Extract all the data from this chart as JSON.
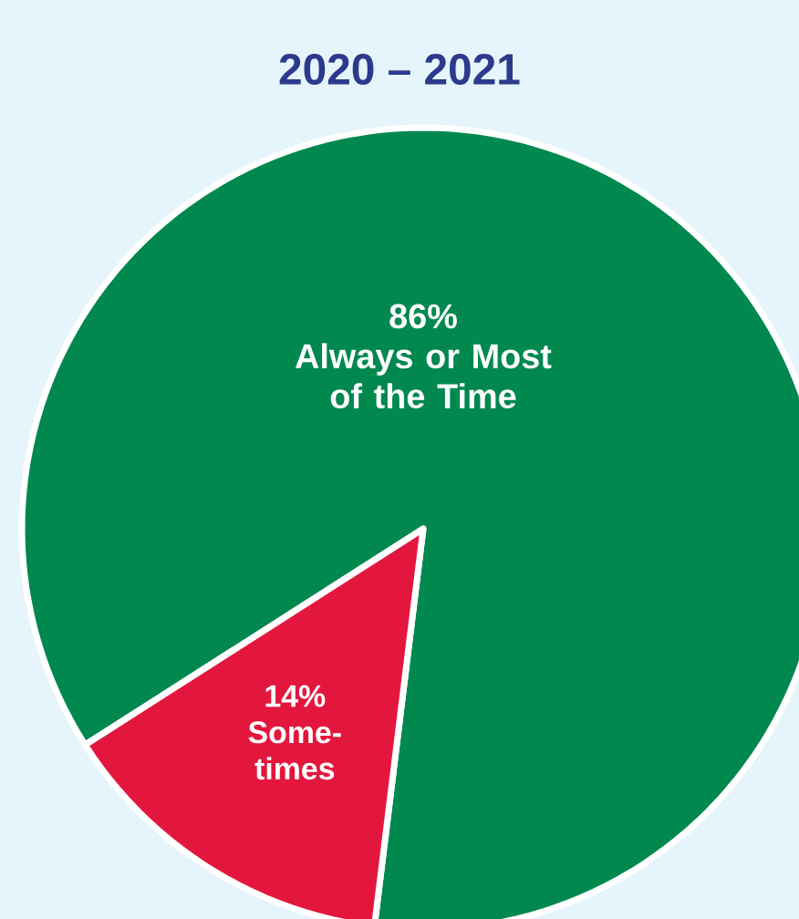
{
  "chart_data": {
    "type": "pie",
    "title": "2020 – 2021",
    "categories": [
      "Always or Most of the Time",
      "Some-times"
    ],
    "values": [
      86,
      14
    ],
    "value_labels": [
      "86%",
      "14%"
    ],
    "colors": [
      "#00884f",
      "#e3173e"
    ]
  }
}
